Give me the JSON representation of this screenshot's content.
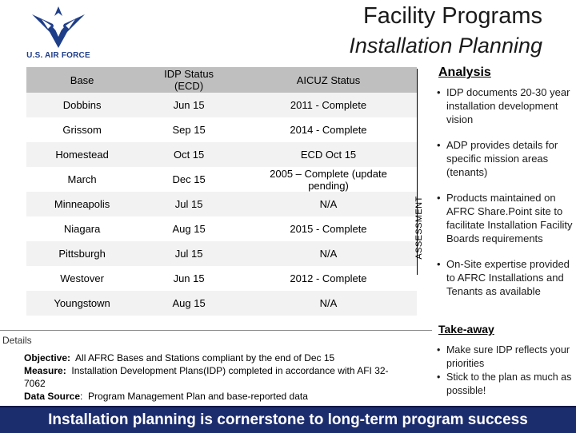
{
  "header": {
    "logo_text": "U.S. AIR FORCE",
    "title": "Facility Programs",
    "subtitle": "Installation Planning"
  },
  "table": {
    "headers": [
      "Base",
      "IDP Status\n(ECD)",
      "AICUZ Status"
    ],
    "rows": [
      [
        "Dobbins",
        "Jun 15",
        "2011 - Complete"
      ],
      [
        "Grissom",
        "Sep 15",
        "2014 - Complete"
      ],
      [
        "Homestead",
        "Oct 15",
        "ECD Oct 15"
      ],
      [
        "March",
        "Dec 15",
        "2005 – Complete (update pending)"
      ],
      [
        "Minneapolis",
        "Jul 15",
        "N/A"
      ],
      [
        "Niagara",
        "Aug 15",
        "2015 - Complete"
      ],
      [
        "Pittsburgh",
        "Jul 15",
        "N/A"
      ],
      [
        "Westover",
        "Jun 15",
        "2012 - Complete"
      ],
      [
        "Youngstown",
        "Aug 15",
        "N/A"
      ]
    ]
  },
  "assessment_label": "ASSESSMENT",
  "analysis": {
    "heading": "Analysis",
    "bullets": [
      "IDP documents 20-30 year installation development vision",
      "ADP provides details for specific mission areas (tenants)",
      "Products maintained on AFRC Share.Point site to facilitate Installation Facility Boards requirements",
      "On-Site expertise provided to AFRC Installations and Tenants as available"
    ]
  },
  "details": {
    "label": "Details",
    "objective_label": "Objective:",
    "objective": "All AFRC Bases and Stations compliant by the end of Dec 15",
    "measure_label": "Measure:",
    "measure": "Installation Development Plans(IDP) completed in accordance with AFI 32-7062",
    "source_label": "Data Source",
    "source": "Program Management Plan and base-reported data"
  },
  "takeaway": {
    "heading": "Take-away",
    "bullets": [
      "Make sure IDP reflects your priorities",
      "Stick to the plan as much as possible!"
    ]
  },
  "footer": "Installation planning is cornerstone to long-term program success",
  "colors": {
    "footer_bg": "#1c2d6e",
    "logo_blue": "#1f3e8a",
    "table_header": "#bfbfbf"
  }
}
